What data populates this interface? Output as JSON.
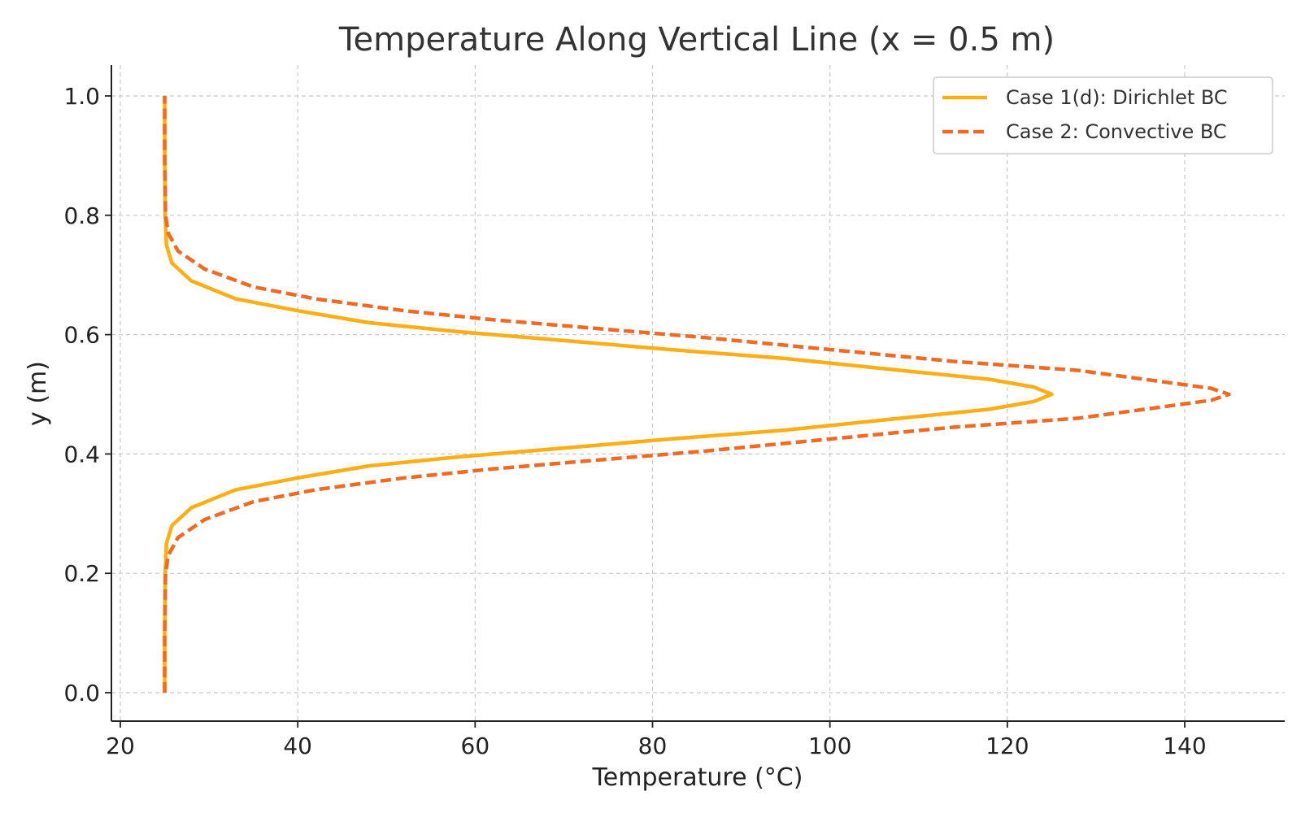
{
  "colors": {
    "case1": "#FFAE14",
    "case2": "#F06A24",
    "grid": "#c8c8c8",
    "axis": "#222222"
  },
  "chart_data": {
    "type": "line",
    "title": "Temperature Along Vertical Line (x = 0.5 m)",
    "xlabel": "Temperature (°C)",
    "ylabel": "y (m)",
    "xlim": [
      19,
      151
    ],
    "ylim": [
      -0.05,
      1.05
    ],
    "xticks": [
      20,
      40,
      60,
      80,
      100,
      120,
      140
    ],
    "xtick_labels": [
      "20",
      "40",
      "60",
      "80",
      "100",
      "120",
      "140"
    ],
    "yticks": [
      0.0,
      0.2,
      0.4,
      0.6,
      0.8,
      1.0
    ],
    "ytick_labels": [
      "0.0",
      "0.2",
      "0.4",
      "0.6",
      "0.8",
      "1.0"
    ],
    "grid": true,
    "legend_position": "top-right",
    "series": [
      {
        "name": "Case 1(d): Dirichlet BC",
        "style": "solid",
        "color": "#FFAE14",
        "points": [
          [
            25,
            0.0
          ],
          [
            25,
            0.1
          ],
          [
            25.05,
            0.2
          ],
          [
            25.2,
            0.25
          ],
          [
            25.8,
            0.28
          ],
          [
            28,
            0.31
          ],
          [
            33,
            0.34
          ],
          [
            40,
            0.36
          ],
          [
            48,
            0.38
          ],
          [
            58,
            0.395
          ],
          [
            70,
            0.41
          ],
          [
            82,
            0.425
          ],
          [
            95,
            0.44
          ],
          [
            108,
            0.46
          ],
          [
            118,
            0.475
          ],
          [
            123,
            0.488
          ],
          [
            125,
            0.5
          ],
          [
            123,
            0.512
          ],
          [
            118,
            0.525
          ],
          [
            108,
            0.54
          ],
          [
            95,
            0.56
          ],
          [
            82,
            0.575
          ],
          [
            70,
            0.59
          ],
          [
            58,
            0.605
          ],
          [
            48,
            0.62
          ],
          [
            40,
            0.64
          ],
          [
            33,
            0.66
          ],
          [
            28,
            0.69
          ],
          [
            25.8,
            0.72
          ],
          [
            25.2,
            0.75
          ],
          [
            25.05,
            0.8
          ],
          [
            25,
            0.9
          ],
          [
            25,
            1.0
          ]
        ]
      },
      {
        "name": "Case 2: Convective BC",
        "style": "dashed",
        "color": "#F06A24",
        "points": [
          [
            25,
            0.0
          ],
          [
            25,
            0.1
          ],
          [
            25.1,
            0.2
          ],
          [
            25.4,
            0.23
          ],
          [
            26.5,
            0.26
          ],
          [
            29.5,
            0.29
          ],
          [
            35,
            0.32
          ],
          [
            42,
            0.34
          ],
          [
            52,
            0.36
          ],
          [
            62,
            0.375
          ],
          [
            74,
            0.39
          ],
          [
            86,
            0.405
          ],
          [
            100,
            0.425
          ],
          [
            114,
            0.445
          ],
          [
            128,
            0.46
          ],
          [
            138,
            0.48
          ],
          [
            143,
            0.49
          ],
          [
            145,
            0.5
          ],
          [
            143,
            0.51
          ],
          [
            138,
            0.52
          ],
          [
            128,
            0.54
          ],
          [
            114,
            0.555
          ],
          [
            100,
            0.575
          ],
          [
            86,
            0.595
          ],
          [
            74,
            0.61
          ],
          [
            62,
            0.625
          ],
          [
            52,
            0.64
          ],
          [
            42,
            0.66
          ],
          [
            35,
            0.68
          ],
          [
            29.5,
            0.71
          ],
          [
            26.5,
            0.74
          ],
          [
            25.4,
            0.77
          ],
          [
            25.1,
            0.8
          ],
          [
            25,
            0.9
          ],
          [
            25,
            1.0
          ]
        ]
      }
    ]
  }
}
